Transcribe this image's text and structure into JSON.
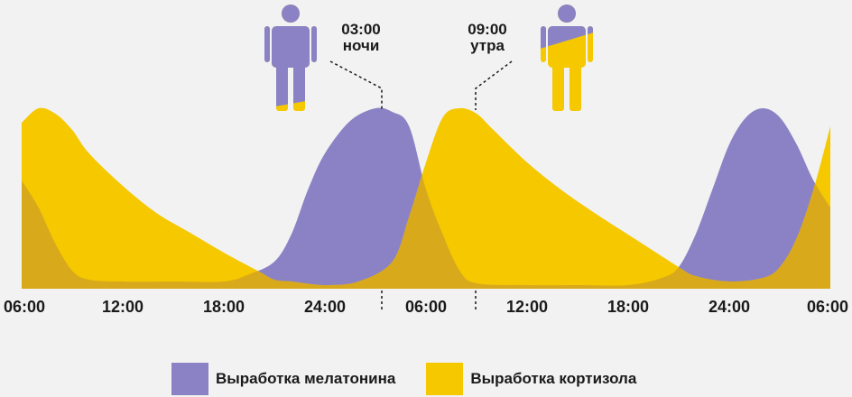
{
  "chart_data": {
    "type": "area",
    "title": "",
    "xlabel": "",
    "ylabel": "",
    "categories": [
      "06:00",
      "12:00",
      "18:00",
      "24:00",
      "06:00",
      "12:00",
      "18:00",
      "24:00",
      "06:00"
    ],
    "x_hours": [
      0,
      6,
      12,
      18,
      24,
      30,
      36,
      42,
      48
    ],
    "y_units": "relative level, 0-1",
    "ylim": [
      0,
      1
    ],
    "grid": false,
    "legend_position": "bottom",
    "series": [
      {
        "name": "Выработка мелатонина",
        "color": "#8a82c5",
        "points": [
          [
            0,
            0.6
          ],
          [
            1,
            0.45
          ],
          [
            2,
            0.25
          ],
          [
            3,
            0.1
          ],
          [
            4,
            0.05
          ],
          [
            6,
            0.04
          ],
          [
            9,
            0.04
          ],
          [
            12,
            0.04
          ],
          [
            13.5,
            0.08
          ],
          [
            15,
            0.15
          ],
          [
            16,
            0.3
          ],
          [
            17,
            0.55
          ],
          [
            18,
            0.75
          ],
          [
            19.5,
            0.93
          ],
          [
            21,
            1.0
          ],
          [
            22,
            0.98
          ],
          [
            23,
            0.9
          ],
          [
            24,
            0.55
          ],
          [
            25,
            0.3
          ],
          [
            26,
            0.1
          ],
          [
            27,
            0.03
          ],
          [
            30,
            0.02
          ],
          [
            33,
            0.02
          ],
          [
            36,
            0.02
          ],
          [
            38,
            0.06
          ],
          [
            39,
            0.12
          ],
          [
            40,
            0.3
          ],
          [
            41,
            0.55
          ],
          [
            42,
            0.8
          ],
          [
            43,
            0.95
          ],
          [
            44,
            1.0
          ],
          [
            45,
            0.95
          ],
          [
            46,
            0.8
          ],
          [
            47,
            0.6
          ],
          [
            48,
            0.45
          ]
        ]
      },
      {
        "name": "Выработка кортизола",
        "color": "#f5c800",
        "points": [
          [
            0,
            0.92
          ],
          [
            1,
            1.0
          ],
          [
            2,
            0.97
          ],
          [
            3,
            0.88
          ],
          [
            4,
            0.75
          ],
          [
            6,
            0.57
          ],
          [
            8,
            0.42
          ],
          [
            10,
            0.31
          ],
          [
            12,
            0.2
          ],
          [
            14,
            0.1
          ],
          [
            15,
            0.05
          ],
          [
            16,
            0.04
          ],
          [
            18,
            0.02
          ],
          [
            20,
            0.04
          ],
          [
            22,
            0.15
          ],
          [
            23,
            0.4
          ],
          [
            24,
            0.7
          ],
          [
            25,
            0.95
          ],
          [
            26,
            1.0
          ],
          [
            27,
            0.97
          ],
          [
            28,
            0.88
          ],
          [
            30,
            0.7
          ],
          [
            32,
            0.55
          ],
          [
            34,
            0.42
          ],
          [
            36,
            0.3
          ],
          [
            38,
            0.18
          ],
          [
            39,
            0.12
          ],
          [
            40,
            0.07
          ],
          [
            42,
            0.04
          ],
          [
            44,
            0.06
          ],
          [
            45,
            0.12
          ],
          [
            46,
            0.28
          ],
          [
            47,
            0.55
          ],
          [
            48,
            0.9
          ]
        ]
      }
    ],
    "annotations": [
      {
        "time": "03:00",
        "label": "ночи",
        "hour": 21,
        "figure": "melatonin-dominant"
      },
      {
        "time": "09:00",
        "label": "утра",
        "hour": 27,
        "figure": "cortisol-dominant"
      }
    ]
  },
  "legend": {
    "melatonin_label": "Выработка мелатонина",
    "cortisol_label": "Выработка кортизола"
  },
  "colors": {
    "background": "#f2f2f2",
    "melatonin": "#8a82c5",
    "cortisol": "#f5c800",
    "overlap": "#d9a91c",
    "text": "#1a1a1a"
  },
  "icons": [
    "person-icon-melatonin",
    "person-icon-cortisol"
  ]
}
